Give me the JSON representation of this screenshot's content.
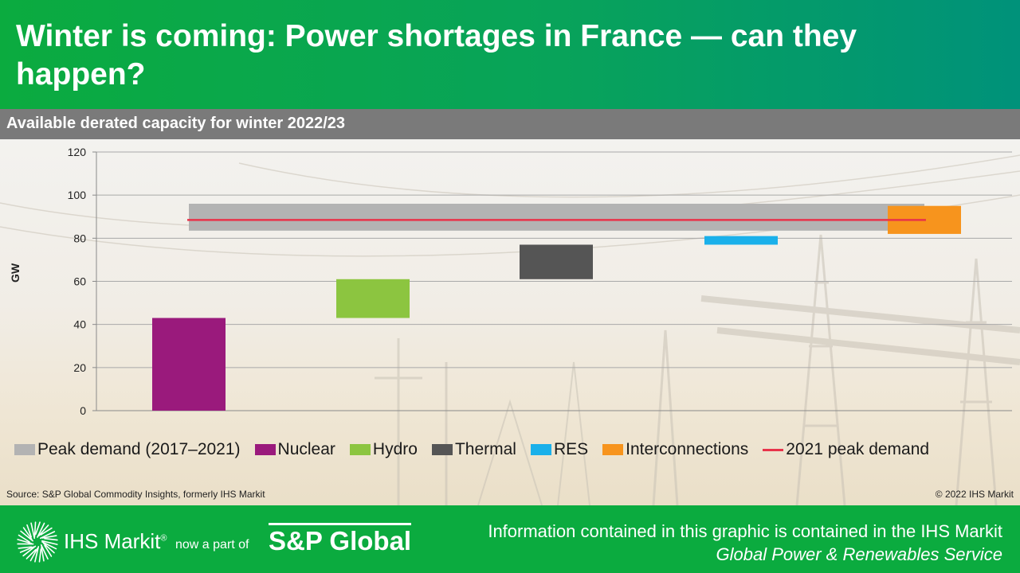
{
  "title": "Winter is coming: Power shortages in France — can they happen?",
  "subtitle": "Available derated capacity for winter 2022/23",
  "chart_data": {
    "type": "bar",
    "subtype": "floating-waterfall",
    "ylabel": "GW",
    "xlabel": "",
    "ylim": [
      0,
      120
    ],
    "yticks": [
      0,
      20,
      40,
      60,
      80,
      100,
      120
    ],
    "grid": true,
    "legend_position": "bottom",
    "series": [
      {
        "name": "Nuclear",
        "color": "#9a1a7c",
        "start": 0,
        "end": 43
      },
      {
        "name": "Hydro",
        "color": "#8cc540",
        "start": 43,
        "end": 61
      },
      {
        "name": "Thermal",
        "color": "#555555",
        "start": 61,
        "end": 77
      },
      {
        "name": "RES",
        "color": "#1ab0ea",
        "start": 77,
        "end": 81
      },
      {
        "name": "Interconnections",
        "color": "#f7941d",
        "start": 82,
        "end": 95
      }
    ],
    "peak_demand_band": {
      "name": "Peak demand (2017–2021)",
      "color": "#b3b3b3",
      "low": 83.5,
      "high": 96
    },
    "peak_line": {
      "name": "2021 peak demand",
      "color": "#e8334a",
      "value": 88.5
    },
    "legend": [
      {
        "label": "Peak demand (2017–2021)",
        "color": "#b3b3b3",
        "kind": "box"
      },
      {
        "label": "Nuclear",
        "color": "#9a1a7c",
        "kind": "box"
      },
      {
        "label": "Hydro",
        "color": "#8cc540",
        "kind": "box"
      },
      {
        "label": "Thermal",
        "color": "#555555",
        "kind": "box"
      },
      {
        "label": "RES",
        "color": "#1ab0ea",
        "kind": "box"
      },
      {
        "label": "Interconnections",
        "color": "#f7941d",
        "kind": "box"
      },
      {
        "label": "2021 peak demand",
        "color": "#e8334a",
        "kind": "line"
      }
    ]
  },
  "source": "Source: S&P Global Commodity Insights, formerly IHS Markit",
  "copyright": "© 2022 IHS Markit",
  "footer": {
    "ihs_name": "IHS Markit",
    "registered": "®",
    "now_part": "now a part of",
    "sp_name": "S&P Global",
    "line1": "Information contained in this graphic is contained in the IHS Markit",
    "line2": "Global Power & Renewables Service"
  }
}
